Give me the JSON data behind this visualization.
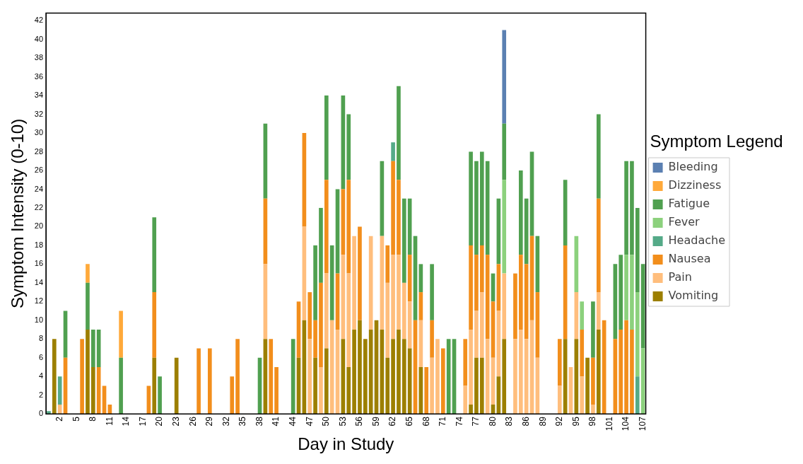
{
  "chart_data": {
    "type": "bar",
    "stacked": true,
    "xlabel": "Day in Study",
    "ylabel": "Symptom Intensity (0-10)",
    "legend_title": "Symptom Legend",
    "legend": "right",
    "grid": false,
    "ylim": [
      0,
      42.8
    ],
    "yticks": [
      0,
      2,
      4,
      6,
      8,
      10,
      12,
      14,
      16,
      18,
      20,
      22,
      24,
      26,
      28,
      30,
      32,
      34,
      36,
      38,
      40,
      42
    ],
    "categories": [
      null,
      null,
      "2",
      null,
      null,
      "5",
      null,
      null,
      "8",
      null,
      null,
      "11",
      null,
      null,
      "14",
      null,
      null,
      "17",
      null,
      null,
      "20",
      null,
      null,
      "23",
      null,
      null,
      "26",
      null,
      null,
      "29",
      null,
      null,
      "32",
      null,
      null,
      "35",
      null,
      null,
      "38",
      null,
      null,
      "41",
      null,
      null,
      "44",
      null,
      null,
      "47",
      null,
      null,
      "50",
      null,
      null,
      "53",
      null,
      null,
      "56",
      null,
      null,
      "59",
      null,
      null,
      "62",
      null,
      null,
      "65",
      null,
      null,
      "68",
      null,
      null,
      "71",
      null,
      null,
      "74",
      null,
      null,
      "77",
      null,
      null,
      "80",
      null,
      null,
      "83",
      null,
      null,
      "86",
      null,
      null,
      "89",
      null,
      null,
      "92",
      null,
      null,
      "95",
      null,
      null,
      "98",
      null,
      null,
      "101",
      null,
      null,
      "104",
      null,
      null,
      "107"
    ],
    "series": [
      {
        "name": "Vomiting",
        "color": "#9c7f00",
        "values": [
          null,
          8,
          null,
          null,
          null,
          null,
          null,
          9,
          5,
          null,
          null,
          null,
          null,
          null,
          null,
          null,
          null,
          null,
          null,
          6,
          null,
          null,
          null,
          6,
          null,
          null,
          null,
          null,
          null,
          null,
          null,
          null,
          null,
          null,
          null,
          null,
          null,
          null,
          null,
          8,
          null,
          null,
          null,
          null,
          null,
          6,
          10,
          null,
          6,
          null,
          7,
          null,
          null,
          8,
          5,
          9,
          10,
          8,
          9,
          10,
          9,
          6,
          8,
          9,
          8,
          7,
          null,
          5,
          null,
          null,
          null,
          null,
          null,
          null,
          null,
          null,
          1,
          6,
          6,
          null,
          1,
          4,
          8,
          null,
          null,
          null,
          null,
          null,
          null,
          null,
          null,
          null,
          null,
          8,
          null,
          8,
          null,
          6,
          null,
          9,
          null,
          null,
          null,
          null,
          null,
          null,
          null,
          null
        ]
      },
      {
        "name": "Pain",
        "color": "#ffbe7d",
        "values": [
          null,
          null,
          1,
          null,
          null,
          null,
          null,
          null,
          null,
          null,
          null,
          null,
          null,
          null,
          null,
          null,
          null,
          null,
          null,
          null,
          null,
          null,
          null,
          null,
          null,
          null,
          null,
          null,
          null,
          null,
          null,
          null,
          null,
          null,
          null,
          null,
          null,
          null,
          null,
          8,
          null,
          null,
          null,
          null,
          null,
          null,
          10,
          8,
          null,
          5,
          8,
          10,
          9,
          9,
          10,
          10,
          null,
          null,
          10,
          null,
          10,
          8,
          9,
          8,
          6,
          5,
          null,
          5,
          null,
          6,
          8,
          null,
          null,
          null,
          null,
          3,
          8,
          5,
          7,
          8,
          5,
          7,
          7,
          null,
          8,
          9,
          8,
          10,
          6,
          null,
          null,
          null,
          3,
          null,
          5,
          5,
          4,
          null,
          1,
          4,
          null,
          null,
          null,
          null,
          null,
          null,
          null,
          null
        ]
      },
      {
        "name": "Nausea",
        "color": "#f28e1c",
        "values": [
          null,
          null,
          null,
          6,
          null,
          null,
          8,
          null,
          null,
          5,
          3,
          1,
          null,
          null,
          null,
          null,
          null,
          null,
          3,
          7,
          null,
          null,
          null,
          null,
          null,
          null,
          null,
          7,
          null,
          7,
          null,
          null,
          null,
          4,
          8,
          null,
          null,
          null,
          null,
          7,
          8,
          5,
          null,
          null,
          null,
          6,
          10,
          5,
          4,
          9,
          10,
          null,
          6,
          7,
          10,
          null,
          10,
          null,
          null,
          null,
          null,
          4,
          10,
          8,
          null,
          5,
          10,
          3,
          5,
          4,
          null,
          7,
          null,
          null,
          null,
          5,
          9,
          6,
          5,
          9,
          6,
          5,
          null,
          null,
          7,
          8,
          8,
          9,
          7,
          null,
          null,
          null,
          5,
          10,
          null,
          null,
          5,
          null,
          5,
          10,
          10,
          null,
          8,
          9,
          10,
          9,
          null,
          null
        ]
      },
      {
        "name": "Headache",
        "color": "#55aa88",
        "values": [
          0.3,
          null,
          3,
          null,
          null,
          null,
          null,
          null,
          null,
          null,
          null,
          null,
          null,
          null,
          null,
          null,
          null,
          null,
          null,
          null,
          null,
          null,
          null,
          null,
          null,
          null,
          null,
          null,
          null,
          null,
          null,
          null,
          null,
          null,
          null,
          null,
          null,
          null,
          null,
          null,
          null,
          null,
          null,
          null,
          null,
          null,
          null,
          null,
          null,
          null,
          null,
          null,
          null,
          null,
          null,
          null,
          null,
          null,
          null,
          null,
          null,
          null,
          2,
          null,
          null,
          null,
          null,
          null,
          null,
          null,
          null,
          null,
          null,
          null,
          null,
          null,
          null,
          null,
          null,
          null,
          null,
          null,
          null,
          null,
          null,
          null,
          null,
          null,
          null,
          null,
          null,
          null,
          null,
          null,
          null,
          null,
          null,
          null,
          null,
          null,
          null,
          null,
          null,
          null,
          null,
          null,
          4,
          null
        ]
      },
      {
        "name": "Fever",
        "color": "#8cd17d",
        "values": [
          null,
          null,
          null,
          null,
          null,
          null,
          null,
          null,
          null,
          null,
          null,
          null,
          null,
          null,
          null,
          null,
          null,
          null,
          null,
          null,
          null,
          null,
          null,
          null,
          null,
          null,
          null,
          null,
          null,
          null,
          null,
          null,
          null,
          null,
          null,
          null,
          null,
          null,
          null,
          null,
          null,
          null,
          null,
          null,
          null,
          null,
          null,
          null,
          null,
          null,
          null,
          null,
          null,
          null,
          null,
          null,
          null,
          null,
          null,
          null,
          null,
          null,
          null,
          null,
          null,
          null,
          null,
          null,
          null,
          null,
          null,
          null,
          null,
          null,
          null,
          null,
          null,
          null,
          null,
          null,
          null,
          null,
          10,
          null,
          null,
          null,
          null,
          null,
          null,
          null,
          null,
          null,
          null,
          null,
          null,
          6,
          3,
          null,
          null,
          null,
          null,
          null,
          null,
          null,
          7,
          8,
          9,
          7
        ]
      },
      {
        "name": "Fatigue",
        "color": "#50a050",
        "values": [
          null,
          null,
          null,
          5,
          null,
          null,
          null,
          5,
          4,
          4,
          null,
          null,
          null,
          6,
          null,
          null,
          null,
          null,
          null,
          8,
          4,
          null,
          null,
          null,
          null,
          null,
          null,
          null,
          null,
          null,
          null,
          null,
          null,
          null,
          null,
          null,
          null,
          null,
          6,
          8,
          null,
          null,
          null,
          null,
          8,
          null,
          null,
          null,
          8,
          8,
          9,
          8,
          9,
          10,
          7,
          null,
          null,
          null,
          null,
          null,
          8,
          null,
          null,
          10,
          9,
          6,
          9,
          3,
          null,
          6,
          null,
          null,
          8,
          8,
          null,
          null,
          10,
          10,
          10,
          10,
          3,
          7,
          6,
          null,
          null,
          9,
          7,
          9,
          6,
          null,
          null,
          null,
          null,
          7,
          null,
          null,
          null,
          null,
          6,
          9,
          null,
          null,
          8,
          8,
          10,
          10,
          9,
          9
        ]
      },
      {
        "name": "Dizziness",
        "color": "#ffa93a",
        "values": [
          null,
          null,
          null,
          null,
          null,
          null,
          null,
          2,
          null,
          null,
          null,
          null,
          null,
          5,
          null,
          null,
          null,
          null,
          null,
          null,
          null,
          null,
          null,
          null,
          null,
          null,
          null,
          null,
          null,
          null,
          null,
          null,
          null,
          null,
          null,
          null,
          null,
          null,
          null,
          null,
          null,
          null,
          null,
          null,
          null,
          null,
          null,
          null,
          null,
          null,
          null,
          null,
          null,
          null,
          null,
          null,
          null,
          null,
          null,
          null,
          null,
          null,
          null,
          null,
          null,
          null,
          null,
          null,
          null,
          null,
          null,
          null,
          null,
          null,
          null,
          null,
          null,
          null,
          null,
          null,
          null,
          null,
          null,
          null,
          null,
          null,
          null,
          null,
          null,
          null,
          null,
          null,
          null,
          null,
          null,
          null,
          null,
          null,
          null,
          null,
          null,
          null,
          null,
          null,
          null,
          null,
          null,
          null
        ]
      },
      {
        "name": "Bleeding",
        "color": "#5b80b2",
        "values": [
          null,
          null,
          null,
          null,
          null,
          null,
          null,
          null,
          null,
          null,
          null,
          null,
          null,
          null,
          null,
          null,
          null,
          null,
          null,
          null,
          null,
          null,
          null,
          null,
          null,
          null,
          null,
          null,
          null,
          null,
          null,
          null,
          null,
          null,
          null,
          null,
          null,
          null,
          null,
          null,
          null,
          null,
          null,
          null,
          null,
          null,
          null,
          null,
          null,
          null,
          null,
          null,
          null,
          null,
          null,
          null,
          null,
          null,
          null,
          null,
          null,
          null,
          null,
          null,
          null,
          null,
          null,
          null,
          null,
          null,
          null,
          null,
          null,
          null,
          null,
          null,
          null,
          null,
          null,
          null,
          null,
          null,
          10,
          null,
          null,
          null,
          null,
          null,
          null,
          null,
          null,
          null,
          null,
          null,
          null,
          null,
          null,
          null,
          null,
          null,
          null,
          null,
          null,
          null,
          null,
          null,
          null,
          null
        ]
      }
    ]
  }
}
